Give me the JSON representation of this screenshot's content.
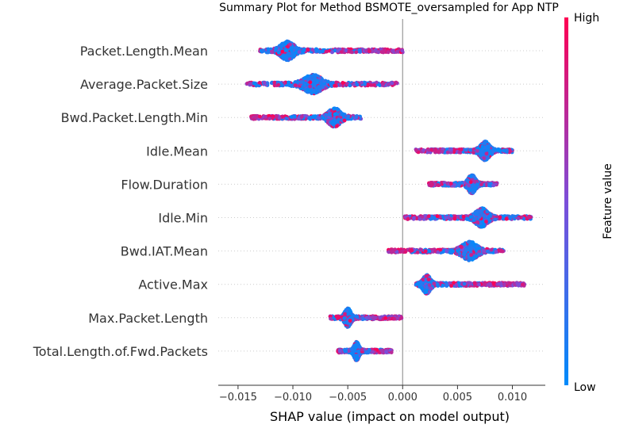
{
  "chart_data": {
    "type": "scatter",
    "subtype": "shap-beeswarm",
    "title": "Summary Plot for Method BSMOTE_oversampled for App NTP",
    "xlabel": "SHAP value (impact on model output)",
    "xlim": [
      -0.0168,
      0.013
    ],
    "xticks": [
      -0.015,
      -0.01,
      -0.005,
      0.0,
      0.005,
      0.01
    ],
    "xtick_labels": [
      "−0.015",
      "−0.010",
      "−0.005",
      "0.000",
      "0.005",
      "0.010"
    ],
    "colorbar": {
      "label": "Feature value",
      "high_label": "High",
      "low_label": "Low",
      "low_color": "#008bfb",
      "high_color": "#ff0052"
    },
    "features": [
      {
        "name": "Packet.Length.Mean",
        "min": -0.013,
        "max": 0.0,
        "center": -0.0105,
        "spread": 0.0022
      },
      {
        "name": "Average.Packet.Size",
        "min": -0.0142,
        "max": -0.0005,
        "center": -0.0082,
        "spread": 0.003
      },
      {
        "name": "Bwd.Packet.Length.Min",
        "min": -0.0138,
        "max": -0.0038,
        "center": -0.0062,
        "spread": 0.002
      },
      {
        "name": "Idle.Mean",
        "min": 0.0012,
        "max": 0.01,
        "center": 0.0075,
        "spread": 0.0015
      },
      {
        "name": "Flow.Duration",
        "min": 0.0024,
        "max": 0.0086,
        "center": 0.0063,
        "spread": 0.0012
      },
      {
        "name": "Idle.Min",
        "min": 0.0002,
        "max": 0.0117,
        "center": 0.0072,
        "spread": 0.002
      },
      {
        "name": "Bwd.IAT.Mean",
        "min": -0.0013,
        "max": 0.0092,
        "center": 0.0061,
        "spread": 0.0025
      },
      {
        "name": "Active.Max",
        "min": 0.0012,
        "max": 0.0111,
        "center": 0.0022,
        "spread": 0.0012
      },
      {
        "name": "Max.Packet.Length",
        "min": -0.0066,
        "max": -0.0001,
        "center": -0.005,
        "spread": 0.001
      },
      {
        "name": "Total.Length.of.Fwd.Packets",
        "min": -0.0059,
        "max": -0.001,
        "center": -0.0042,
        "spread": 0.0008
      }
    ]
  }
}
